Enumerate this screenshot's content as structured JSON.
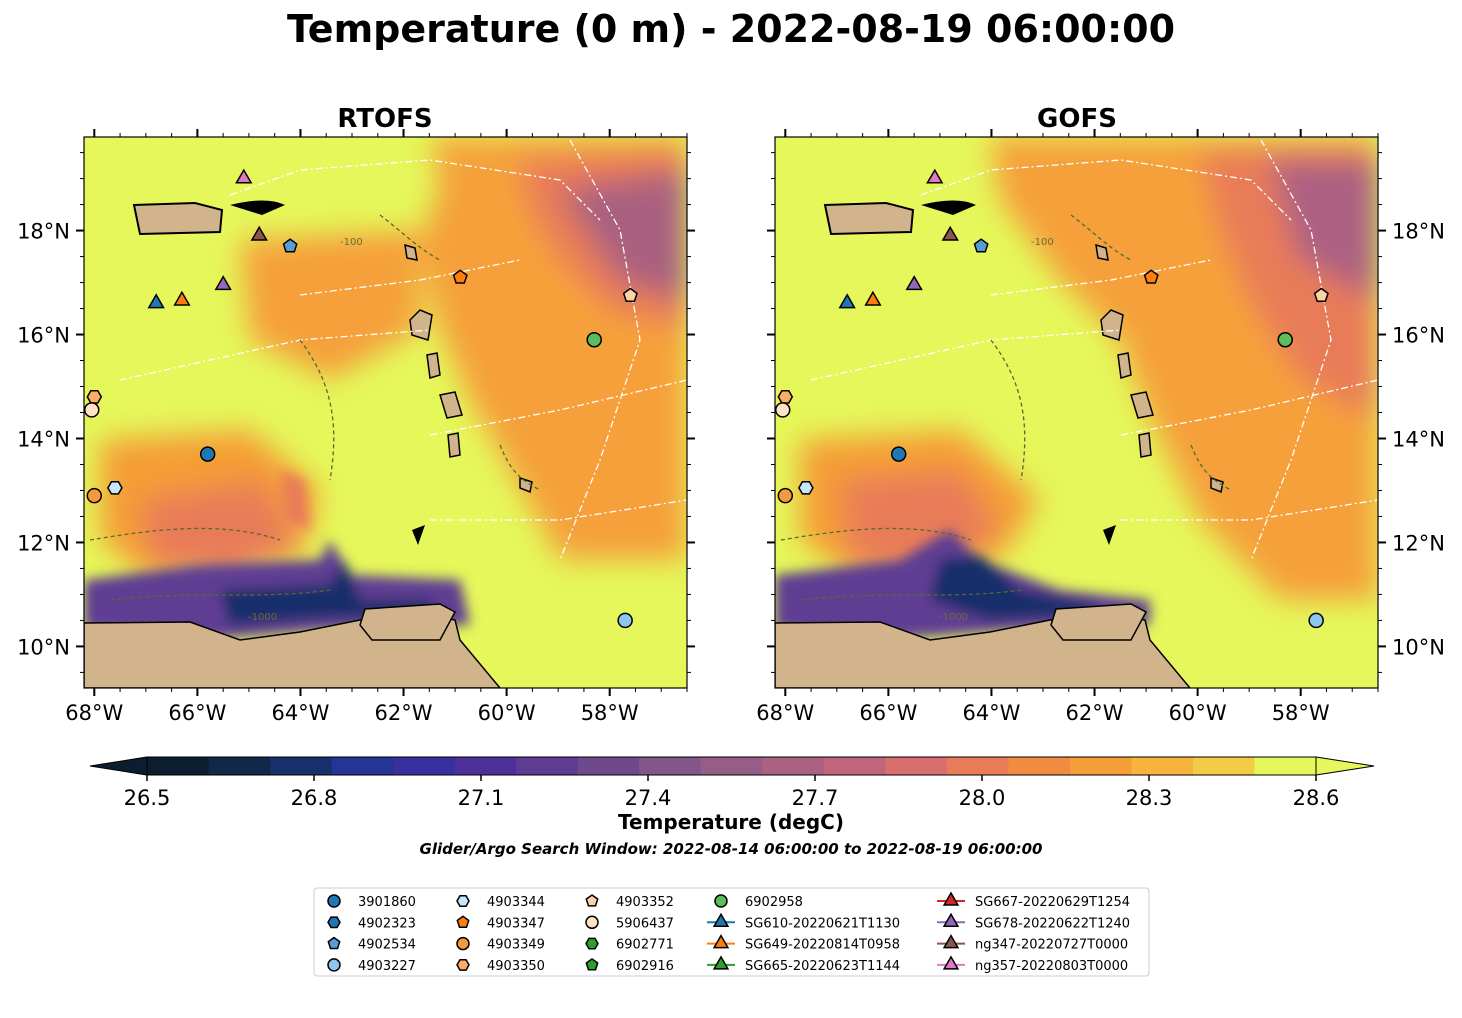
{
  "title": "Temperature (0 m) - 2022-08-19 06:00:00",
  "panels": [
    {
      "title": "RTOFS",
      "sst_style": "rtofs"
    },
    {
      "title": "GOFS",
      "sst_style": "gofs"
    }
  ],
  "axes": {
    "lon_ticks": [
      "68°W",
      "66°W",
      "64°W",
      "62°W",
      "60°W",
      "58°W"
    ],
    "lat_ticks": [
      "18°N",
      "16°N",
      "14°N",
      "12°N",
      "10°N"
    ],
    "lon_range": [
      -68.2,
      -56.5
    ],
    "lat_range": [
      9.2,
      19.8
    ]
  },
  "colorbar": {
    "label": "Temperature (degC)",
    "ticks": [
      "26.5",
      "26.8",
      "27.1",
      "27.4",
      "27.7",
      "28.0",
      "28.3",
      "28.6"
    ],
    "min": 26.5,
    "max": 28.6,
    "extend": "both"
  },
  "search_window": "Glider/Argo Search Window: 2022-08-14 06:00:00 to 2022-08-19 06:00:00",
  "legend": {
    "columns": [
      [
        {
          "label": "3901860",
          "marker": "circle",
          "color": "#1f77b4"
        },
        {
          "label": "4902323",
          "marker": "hexagon",
          "color": "#1f77b4"
        },
        {
          "label": "4902534",
          "marker": "pentagon",
          "color": "#5b9bd5"
        },
        {
          "label": "4903227",
          "marker": "circle",
          "color": "#8ec6ef"
        }
      ],
      [
        {
          "label": "4903344",
          "marker": "hexagon",
          "color": "#c6e7fb"
        },
        {
          "label": "4903347",
          "marker": "pentagon",
          "color": "#ff7f0e"
        },
        {
          "label": "4903349",
          "marker": "circle",
          "color": "#f59a3c"
        },
        {
          "label": "4903350",
          "marker": "hexagon",
          "color": "#fcae64"
        }
      ],
      [
        {
          "label": "4903352",
          "marker": "pentagon",
          "color": "#fdd3a6"
        },
        {
          "label": "5906437",
          "marker": "circle",
          "color": "#fee3c6"
        },
        {
          "label": "6902771",
          "marker": "hexagon",
          "color": "#2ca02c"
        },
        {
          "label": "6902916",
          "marker": "pentagon",
          "color": "#2ca02c"
        }
      ],
      [
        {
          "label": "6902958",
          "marker": "circle",
          "color": "#5cbd5c"
        },
        {
          "label": "SG610-20220621T1130",
          "marker": "triangle",
          "color": "#1f77b4"
        },
        {
          "label": "SG649-20220814T0958",
          "marker": "triangle",
          "color": "#ff7f0e"
        },
        {
          "label": "SG665-20220623T1144",
          "marker": "triangle",
          "color": "#2ca02c"
        }
      ],
      [
        {
          "label": "SG667-20220629T1254",
          "marker": "triangle",
          "color": "#d62728"
        },
        {
          "label": "SG678-20220622T1240",
          "marker": "triangle",
          "color": "#9467bd"
        },
        {
          "label": "ng347-20220727T0000",
          "marker": "triangle",
          "color": "#8c564b"
        },
        {
          "label": "ng357-20220803T0000",
          "marker": "triangle",
          "color": "#e377c2"
        }
      ]
    ]
  },
  "observations": [
    {
      "id": "3901860",
      "lon": -65.8,
      "lat": 13.7,
      "marker": "circle",
      "color": "#1f77b4"
    },
    {
      "id": "4902534",
      "lon": -64.2,
      "lat": 17.7,
      "marker": "pentagon",
      "color": "#5b9bd5"
    },
    {
      "id": "4903227",
      "lon": -57.7,
      "lat": 10.5,
      "marker": "circle",
      "color": "#8ec6ef"
    },
    {
      "id": "4903344",
      "lon": -67.6,
      "lat": 13.05,
      "marker": "hexagon",
      "color": "#c6e7fb"
    },
    {
      "id": "4903347",
      "lon": -60.9,
      "lat": 17.1,
      "marker": "pentagon",
      "color": "#ff7f0e"
    },
    {
      "id": "4903349",
      "lon": -68.0,
      "lat": 12.9,
      "marker": "circle",
      "color": "#f59a3c"
    },
    {
      "id": "4903350",
      "lon": -68.0,
      "lat": 14.8,
      "marker": "hexagon",
      "color": "#fcae64"
    },
    {
      "id": "4903352",
      "lon": -57.6,
      "lat": 16.75,
      "marker": "pentagon",
      "color": "#fdd3a6"
    },
    {
      "id": "5906437",
      "lon": -68.05,
      "lat": 14.55,
      "marker": "circle",
      "color": "#fee3c6"
    },
    {
      "id": "6902958",
      "lon": -58.3,
      "lat": 15.9,
      "marker": "circle",
      "color": "#5cbd5c"
    },
    {
      "id": "SG610-20220621T1130",
      "lon": -66.8,
      "lat": 16.6,
      "marker": "triangle",
      "color": "#1f77b4"
    },
    {
      "id": "SG649-20220814T0958",
      "lon": -66.3,
      "lat": 16.65,
      "marker": "triangle",
      "color": "#ff7f0e"
    },
    {
      "id": "SG678-20220622T1240",
      "lon": -65.5,
      "lat": 16.95,
      "marker": "triangle",
      "color": "#9467bd"
    },
    {
      "id": "ng347-20220727T0000",
      "lon": -64.8,
      "lat": 17.9,
      "marker": "triangle",
      "color": "#8c564b"
    },
    {
      "id": "ng357-20220803T0000",
      "lon": -65.1,
      "lat": 19.0,
      "marker": "triangle",
      "color": "#e377c2"
    }
  ],
  "contour_labels": [
    "-100",
    "-1000"
  ],
  "colors": {
    "land": "#d2b48c",
    "background_sst": "#e5f75a",
    "colormap": [
      "#0b1d2e",
      "#10284a",
      "#172f6b",
      "#253595",
      "#39309f",
      "#4e2f9a",
      "#5f3c93",
      "#6e4a8d",
      "#825689",
      "#965e86",
      "#ab6182",
      "#c1657c",
      "#d86e6e",
      "#e97b59",
      "#f38b43",
      "#f59d36",
      "#f7b33b",
      "#f2cc46",
      "#e5f75a"
    ]
  }
}
